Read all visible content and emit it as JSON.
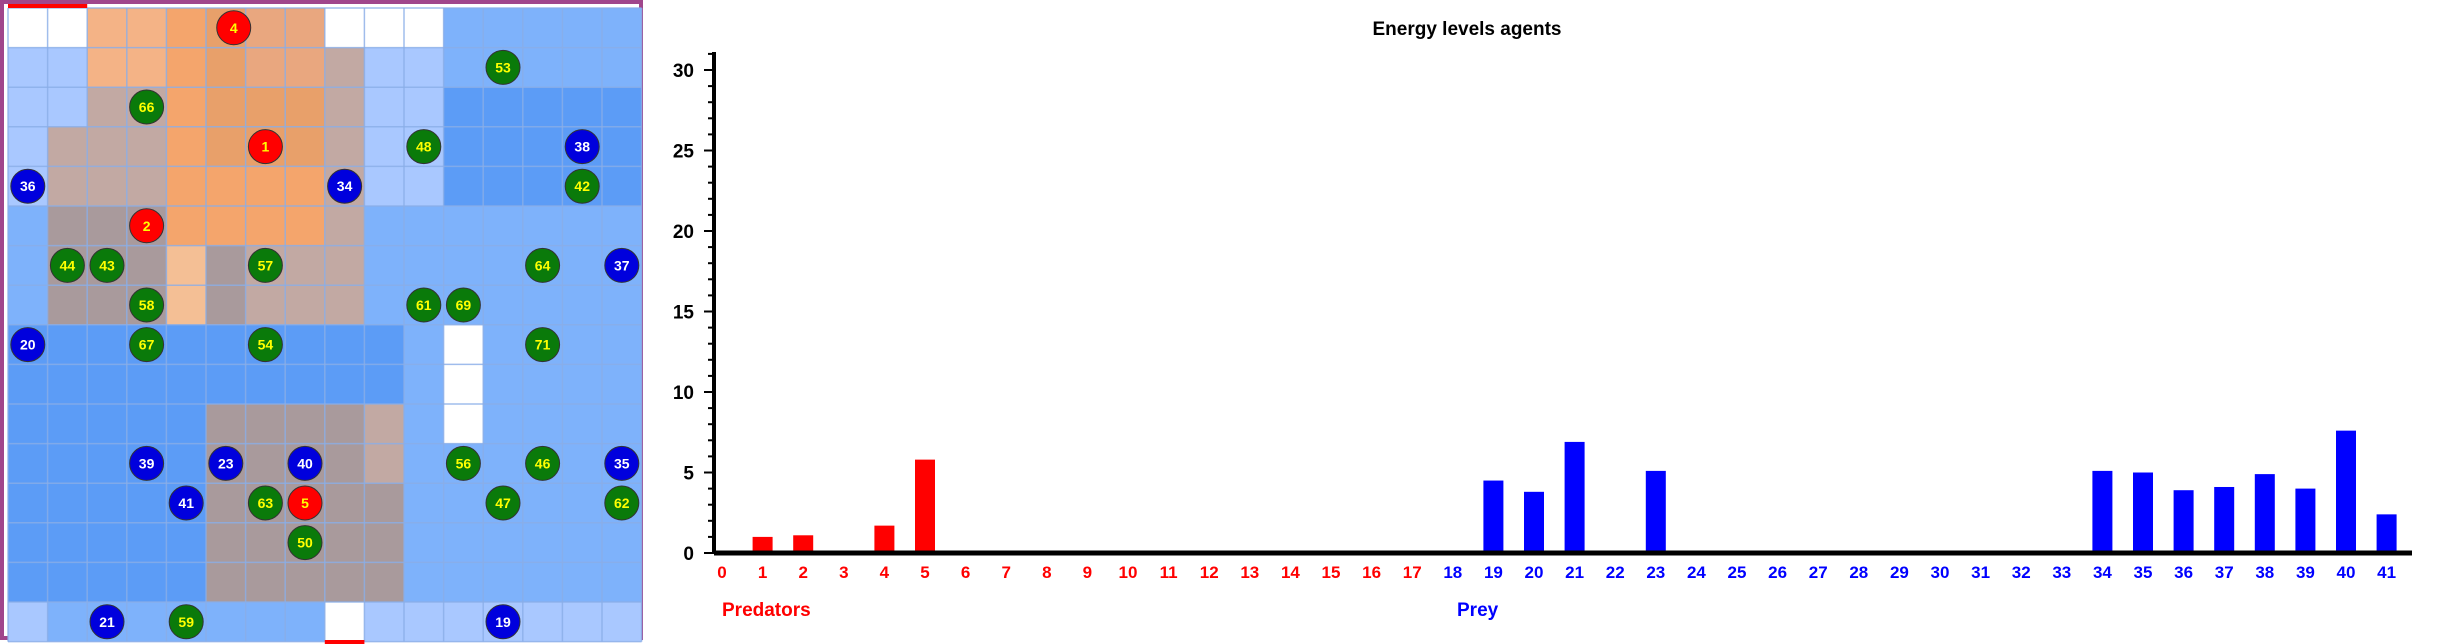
{
  "chart_data": {
    "type": "bar",
    "title": "Energy levels agents",
    "ylim": [
      0,
      31
    ],
    "yticks": [
      0,
      5,
      10,
      15,
      20,
      25,
      30
    ],
    "categories": [
      "0",
      "1",
      "2",
      "3",
      "4",
      "5",
      "6",
      "7",
      "8",
      "9",
      "10",
      "11",
      "12",
      "13",
      "14",
      "15",
      "16",
      "17",
      "18",
      "19",
      "20",
      "21",
      "22",
      "23",
      "24",
      "25",
      "26",
      "27",
      "28",
      "29",
      "30",
      "31",
      "32",
      "33",
      "34",
      "35",
      "36",
      "37",
      "38",
      "39",
      "40",
      "41"
    ],
    "groups": [
      {
        "name": "Predators",
        "color": "#ff0000",
        "from": 0,
        "to": 17
      },
      {
        "name": "Prey",
        "color": "#0000ff",
        "from": 18,
        "to": 41
      }
    ],
    "values": [
      0,
      1.0,
      1.1,
      0,
      1.7,
      5.8,
      0,
      0,
      0,
      0,
      0,
      0,
      0,
      0,
      0,
      0,
      0,
      0,
      0,
      4.5,
      3.8,
      6.9,
      0,
      5.1,
      0,
      0,
      0,
      0,
      0,
      0,
      0,
      0,
      0,
      0,
      5.1,
      5.0,
      3.9,
      4.1,
      4.9,
      4.0,
      7.6,
      2.4
    ],
    "grid": false,
    "legend": "none"
  },
  "grid_world": {
    "agents": [
      {
        "id": "4",
        "kind": "predator"
      },
      {
        "id": "53",
        "kind": "grass"
      },
      {
        "id": "66",
        "kind": "grass"
      },
      {
        "id": "1",
        "kind": "predator"
      },
      {
        "id": "48",
        "kind": "grass"
      },
      {
        "id": "38",
        "kind": "prey"
      },
      {
        "id": "36",
        "kind": "prey"
      },
      {
        "id": "34",
        "kind": "prey"
      },
      {
        "id": "42",
        "kind": "grass"
      },
      {
        "id": "2",
        "kind": "predator"
      },
      {
        "id": "44",
        "kind": "grass"
      },
      {
        "id": "43",
        "kind": "grass"
      },
      {
        "id": "57",
        "kind": "grass"
      },
      {
        "id": "64",
        "kind": "grass"
      },
      {
        "id": "37",
        "kind": "prey"
      },
      {
        "id": "58",
        "kind": "grass"
      },
      {
        "id": "61",
        "kind": "grass"
      },
      {
        "id": "69",
        "kind": "grass"
      },
      {
        "id": "20",
        "kind": "prey"
      },
      {
        "id": "67",
        "kind": "grass"
      },
      {
        "id": "54",
        "kind": "grass"
      },
      {
        "id": "71",
        "kind": "grass"
      },
      {
        "id": "39",
        "kind": "prey"
      },
      {
        "id": "23",
        "kind": "prey"
      },
      {
        "id": "40",
        "kind": "prey"
      },
      {
        "id": "56",
        "kind": "grass"
      },
      {
        "id": "46",
        "kind": "grass"
      },
      {
        "id": "35",
        "kind": "prey"
      },
      {
        "id": "41",
        "kind": "prey"
      },
      {
        "id": "63",
        "kind": "grass"
      },
      {
        "id": "5",
        "kind": "predator"
      },
      {
        "id": "47",
        "kind": "grass"
      },
      {
        "id": "62",
        "kind": "grass"
      },
      {
        "id": "50",
        "kind": "grass"
      },
      {
        "id": "21",
        "kind": "prey"
      },
      {
        "id": "59",
        "kind": "grass"
      },
      {
        "id": "19",
        "kind": "prey"
      }
    ],
    "colors": {
      "predator": "#ff0000",
      "prey": "#0000dd",
      "grass": "#0a7a0a",
      "predator_label": "#ffff00",
      "prey_label": "#ffffff",
      "grass_label": "#ffff00"
    }
  }
}
